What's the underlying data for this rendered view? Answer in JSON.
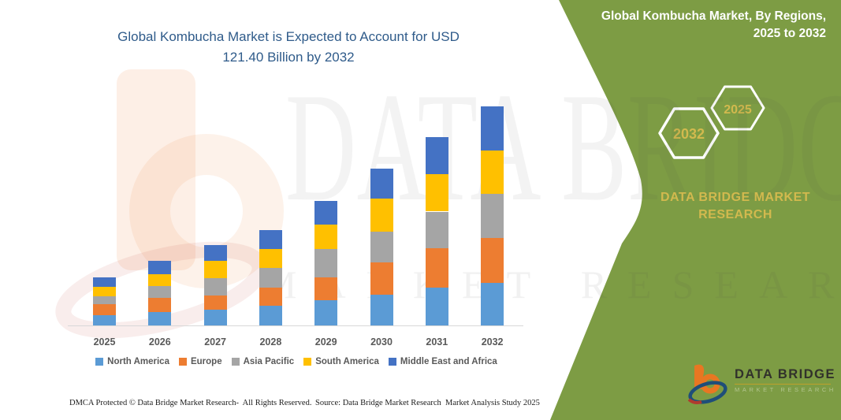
{
  "main": {
    "title_line1": "Global Kombucha Market is Expected to Account for USD",
    "title_line2": "121.40 Billion by 2032",
    "footer_left": "DMCA Protected © Data Bridge Market Research-  All Rights Reserved.",
    "footer_right": "Source: Data Bridge Market Research  Market Analysis Study 2025"
  },
  "panel": {
    "heading_line1": "Global Kombucha Market, By Regions,",
    "heading_line2": "2025 to 2032",
    "hexagons": [
      {
        "label": "2032"
      },
      {
        "label": "2025"
      }
    ],
    "brand_line1": "DATA BRIDGE MARKET",
    "brand_line2": "RESEARCH",
    "logo": {
      "name": "DATA BRIDGE",
      "subtitle": "MARKET RESEARCH"
    },
    "colors": {
      "green": "#7D9C44",
      "gold": "#D2B94E",
      "white": "#FFFFFF"
    }
  },
  "watermarks": {
    "brand": "DATA BRIDGE",
    "tagline": "MARKET RESEARCH",
    "logo_icon": "data-bridge-b-watermark"
  },
  "icons": {
    "logo_icon": "data-bridge-b-logo",
    "hexagon_icons": [
      "hexagon-outline-2032",
      "hexagon-outline-2025"
    ]
  },
  "chart_data": {
    "type": "bar",
    "stacked": true,
    "title": "Global Kombucha Market is Expected to Account for USD 121.40 Billion by 2032",
    "unit": "USD Billion",
    "highlight_total_2032": 121.4,
    "categories": [
      "2025",
      "2026",
      "2027",
      "2028",
      "2029",
      "2030",
      "2031",
      "2032"
    ],
    "series": [
      {
        "name": "North America",
        "color": "#5B9BD5",
        "values": [
          5.8,
          7.3,
          8.7,
          10.9,
          14.1,
          17.1,
          21.1,
          23.7
        ]
      },
      {
        "name": "Europe",
        "color": "#ED7D31",
        "values": [
          5.8,
          8.0,
          8.0,
          10.2,
          12.7,
          17.9,
          21.6,
          24.8
        ]
      },
      {
        "name": "Asia Pacific",
        "color": "#A5A5A5",
        "values": [
          4.4,
          6.6,
          9.5,
          10.9,
          15.4,
          17.1,
          20.4,
          24.4
        ]
      },
      {
        "name": "South America",
        "color": "#FFC000",
        "values": [
          5.4,
          6.3,
          9.5,
          10.2,
          13.7,
          18.2,
          20.7,
          24.0
        ]
      },
      {
        "name": "Middle East and Africa",
        "color": "#4472C4",
        "values": [
          5.2,
          7.6,
          8.7,
          10.6,
          13.1,
          16.5,
          20.5,
          24.5
        ]
      }
    ],
    "totals_by_year": [
      26.6,
      35.8,
      44.4,
      52.8,
      69.0,
      86.8,
      104.3,
      121.4
    ],
    "value_axis_visible": false,
    "gridlines": false,
    "legend_position": "bottom"
  }
}
